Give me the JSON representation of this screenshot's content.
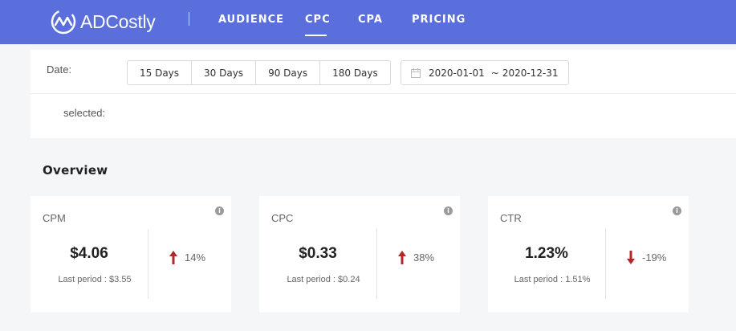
{
  "app": {
    "name": "ADCostly",
    "accent": "#5a6fdc"
  },
  "nav": {
    "items": [
      {
        "label": "AUDIENCE"
      },
      {
        "label": "CPC",
        "active": true
      },
      {
        "label": "CPA"
      },
      {
        "label": "PRICING"
      }
    ]
  },
  "filter": {
    "date_label": "Date:",
    "range_buttons": [
      "15 Days",
      "30 Days",
      "90 Days",
      "180 Days"
    ],
    "date_range": {
      "start": "2020-01-01",
      "separator": "~",
      "end": "2020-12-31",
      "icon": "calendar-icon"
    },
    "selected_label": "selected:"
  },
  "overview": {
    "title": "Overview",
    "cards": [
      {
        "title": "CPM",
        "value": "$4.06",
        "last_period": "Last period : $3.55",
        "change": "14%",
        "direction": "up",
        "arrow_color": "#b02a2a"
      },
      {
        "title": "CPC",
        "value": "$0.33",
        "last_period": "Last period : $0.24",
        "change": "38%",
        "direction": "up",
        "arrow_color": "#b02a2a"
      },
      {
        "title": "CTR",
        "value": "1.23%",
        "last_period": "Last period : 1.51%",
        "change": "-19%",
        "direction": "down",
        "arrow_color": "#b02a2a"
      }
    ]
  }
}
